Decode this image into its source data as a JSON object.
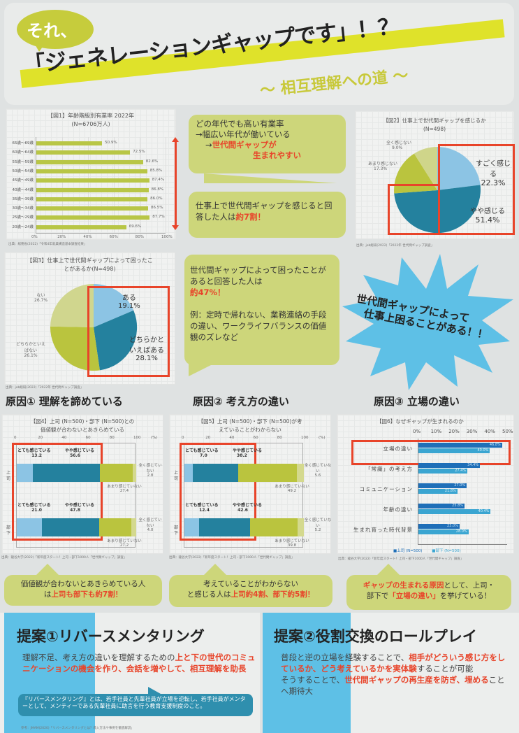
{
  "header": {
    "badge": "それ、",
    "title": "「ジェネレーションギャップです」！？",
    "subtitle": "～ 相互理解への道 ～"
  },
  "fig1": {
    "title_line1": "【図1】年齢階級別有業率 2022年",
    "title_line2": "(N=6706万人)",
    "source": "出典：総務省(2022)「令和4年就業構造基本調査結果」"
  },
  "callout1": {
    "line1": "どの年代でも高い有業率",
    "line2": "→幅広い年代が働いている",
    "line3_prefix": "→",
    "line3_red": "世代間ギャップが",
    "line4_red": "生まれやすい"
  },
  "callout2": {
    "text": "仕事上で世代間ギャップを感じると回答した人は",
    "red": "約7割！"
  },
  "fig2": {
    "title_line1": "【図2】仕事上で世代間ギャップを感じるか",
    "title_line2": "(N=498)",
    "labels": [
      {
        "name": "すごく感じる",
        "value": "22.3%"
      },
      {
        "name": "やや感じる",
        "value": "51.4%"
      },
      {
        "name": "あまり感じない",
        "value": "17.3%"
      },
      {
        "name": "全く感じない",
        "value": "9.0%"
      }
    ],
    "source": "出典：job総研(2022)「2022年 世代間ギャップ調査」"
  },
  "fig3": {
    "title_line1": "【図3】仕事上で世代間ギャップによって困ったこ",
    "title_line2": "とがあるか(N=498)",
    "labels": [
      {
        "name": "ある",
        "value": "19.1%"
      },
      {
        "name": "どちらかといえばある",
        "name1": "どちらかと",
        "name2": "いえばある",
        "value": "28.1%"
      },
      {
        "name": "どちらかといえばない",
        "name1": "どちらかといえ",
        "name2": "ばない",
        "value": "26.1%"
      },
      {
        "name": "ない",
        "value": "26.7%"
      }
    ],
    "source": "出典：job総研(2022)「2022年 世代間ギャップ調査」"
  },
  "callout3": {
    "line1": "世代間ギャップによって困ったことがあると回答した人は",
    "red": "約47%！",
    "example": "例：定時で帰れない、業務連絡の手段の違い、ワークライフバランスの価値観のズレなど"
  },
  "burst": {
    "line1": "世代間ギャップによって",
    "line2": "仕事上困ることがある！！"
  },
  "causes": [
    {
      "heading": "原因① 理解を諦めている"
    },
    {
      "heading": "原因② 考え方の違い"
    },
    {
      "heading": "原因③ 立場の違い"
    }
  ],
  "fig4": {
    "title_line1": "【図4】上司 (N=500)・部下 (N=500)との",
    "title_line2": "価値観が合わないとあきらめている",
    "axis": [
      "0",
      "20",
      "40",
      "60",
      "80",
      "100",
      "(%)"
    ],
    "rows": [
      {
        "label": "上司",
        "l1": "とても感じている",
        "v1": "13.2",
        "l2": "やや感じている",
        "v2": "56.6",
        "l3": "あまり感じていない",
        "v3": "27.4",
        "l4a": "全く感じてい",
        "l4b": "ない",
        "v4": "2.8"
      },
      {
        "label": "部下",
        "l1": "とても感じている",
        "v1": "21.0",
        "l2": "やや感じている",
        "v2": "47.8",
        "l3": "あまり感じていない",
        "v3": "27.2",
        "l4a": "全く感じてい",
        "l4b": "ない",
        "v4": "4.0"
      }
    ],
    "source": "出典：龍谷大学(2022)「新年度スタート！上司・部下1000人「世代間ギャップ」調査」"
  },
  "fig5": {
    "title_line1": "【図5】上司 (N=500)・部下 (N=500)が考",
    "title_line2": "えていることがわからない",
    "axis": [
      "0",
      "20",
      "40",
      "60",
      "80",
      "100",
      "(%)"
    ],
    "rows": [
      {
        "label": "上司",
        "l1": "とても感じている",
        "v1": "7.0",
        "l2": "やや感じている",
        "v2": "38.2",
        "l3": "あまり感じていない",
        "v3": "49.2",
        "l4a": "全く感じていな",
        "l4b": "い",
        "v4": "5.6"
      },
      {
        "label": "部下",
        "l1": "とても感じている",
        "v1": "12.4",
        "l2": "やや感じている",
        "v2": "42.6",
        "l3": "あまり感じていない",
        "v3": "39.8",
        "l4a": "全く感じていな",
        "l4b": "い",
        "v4": "5.2"
      }
    ],
    "source": "出典：龍谷大学(2022)「新年度スタート！上司・部下1000人「世代間ギャップ」調査」"
  },
  "fig6": {
    "title": "【図6】なぜギャップが生まれるのか",
    "axis": [
      "0%",
      "10%",
      "20%",
      "30%",
      "40%",
      "50%"
    ],
    "rows": [
      {
        "label": "立場の違い",
        "boss": "46.8%",
        "sub": "40.0%"
      },
      {
        "label": "「常識」の考え方",
        "boss": "34.4%",
        "sub": "27.4%"
      },
      {
        "label": "コミュニケーション",
        "boss": "27.0%",
        "sub": "21.8%"
      },
      {
        "label": "年齢の違い",
        "boss": "25.8%",
        "sub": "40.4%"
      },
      {
        "label": "生まれ育った時代背景",
        "boss": "23.0%",
        "sub": "28.0%"
      }
    ],
    "legend_boss": "■上司 (N=500)",
    "legend_sub": "■部下 (N=500)",
    "source": "出典：龍谷大学(2022)「新年度スタート！上司・部下1000人「世代間ギャップ」調査」"
  },
  "summary": [
    {
      "line1": "価値観が合わないとあきらめている人",
      "line2_prefix": "は",
      "line2_red": "上司も部下も約7割！"
    },
    {
      "line1": "考えていることがわからない",
      "line2_prefix": "と感じる人は",
      "line2_red": "上司約4割、部下約5割！"
    },
    {
      "line1_red": "ギャップの生まれる原因",
      "line1": "として、上司・",
      "line2_prefix": "部下で",
      "line2_red": "「立場の違い」",
      "line2_suffix": "を挙げている！"
    }
  ],
  "proposal1": {
    "title": "提案①リバースメンタリング",
    "text_plain": "理解不足、考え方の違いを理解するための",
    "text_red": "上と下の世代のコミュニケーションの機会を作り、会話を増やして、相互理解を助長",
    "note": "『リバースメンタリング』とは、若手社員と先輩社員が立場を逆転し、若手社員がメンターとして、メンティーである先輩社員に助言を行う教育支援制度のこと。",
    "source": "参考：JMAM(2020)「リバースメンタリングとは？導入方法や事例を徹底解説」"
  },
  "proposal2": {
    "title": "提案②役割交換のロールプレイ",
    "t1": "普段と逆の立場を経験することで、",
    "t2_red": "相手がどういう感じ方をしているか、どう考えているかを実体験",
    "t3": "することが可能",
    "t4": "そうすることで、",
    "t5_red": "世代間ギャップの再生産を防ぎ、埋める",
    "t6": "ことへ期待大"
  },
  "chart_data": [
    {
      "type": "bar",
      "title": "【図1】年齢階級別有業率 2022年 (N=6706万人)",
      "orientation": "horizontal",
      "categories": [
        "65歳～69歳",
        "60歳～64歳",
        "55歳～59歳",
        "50歳～54歳",
        "45歳～49歳",
        "40歳～44歳",
        "35歳～39歳",
        "30歳～34歳",
        "25歳～29歳",
        "20歳～24歳"
      ],
      "values": [
        50.9,
        72.5,
        82.6,
        85.8,
        87.4,
        86.8,
        86.0,
        86.5,
        87.7,
        69.6
      ],
      "value_labels": [
        "50.9%",
        "72.5%",
        "82.6%",
        "85.8%",
        "87.4%",
        "86.8%",
        "86.0%",
        "86.5%",
        "87.7%",
        "69.6%"
      ],
      "xlim": [
        0,
        100
      ],
      "xticks": [
        "0%",
        "20%",
        "40%",
        "60%",
        "80%",
        "100%"
      ],
      "grid": true
    },
    {
      "type": "pie",
      "title": "【図2】仕事上で世代間ギャップを感じるか (N=498)",
      "categories": [
        "すごく感じる",
        "やや感じる",
        "あまり感じない",
        "全く感じない"
      ],
      "values": [
        22.3,
        51.4,
        17.3,
        9.0
      ]
    },
    {
      "type": "pie",
      "title": "【図3】仕事上で世代間ギャップによって困ったことがあるか (N=498)",
      "categories": [
        "ある",
        "どちらかといえばある",
        "どちらかといえばない",
        "ない"
      ],
      "values": [
        19.1,
        28.1,
        26.1,
        26.7
      ]
    },
    {
      "type": "bar",
      "stacked": true,
      "orientation": "horizontal",
      "title": "【図4】上司 (N=500)・部下 (N=500)との価値観が合わないとあきらめている",
      "categories": [
        "上司",
        "部下"
      ],
      "series": [
        {
          "name": "とても感じている",
          "values": [
            13.2,
            21.0
          ]
        },
        {
          "name": "やや感じている",
          "values": [
            56.6,
            47.8
          ]
        },
        {
          "name": "あまり感じていない",
          "values": [
            27.4,
            27.2
          ]
        },
        {
          "name": "全く感じていない",
          "values": [
            2.8,
            4.0
          ]
        }
      ],
      "xlim": [
        0,
        100
      ],
      "xlabel": "(%)"
    },
    {
      "type": "bar",
      "stacked": true,
      "orientation": "horizontal",
      "title": "【図5】上司 (N=500)・部下 (N=500)が考えていることがわからない",
      "categories": [
        "上司",
        "部下"
      ],
      "series": [
        {
          "name": "とても感じている",
          "values": [
            7.0,
            12.4
          ]
        },
        {
          "name": "やや感じている",
          "values": [
            38.2,
            42.6
          ]
        },
        {
          "name": "あまり感じていない",
          "values": [
            49.2,
            39.8
          ]
        },
        {
          "name": "全く感じていない",
          "values": [
            5.6,
            5.2
          ]
        }
      ],
      "xlim": [
        0,
        100
      ],
      "xlabel": "(%)"
    },
    {
      "type": "bar",
      "orientation": "horizontal",
      "title": "【図6】なぜギャップが生まれるのか",
      "categories": [
        "立場の違い",
        "「常識」の考え方",
        "コミュニケーション",
        "年齢の違い",
        "生まれ育った時代背景"
      ],
      "series": [
        {
          "name": "上司 (N=500)",
          "values": [
            46.8,
            34.4,
            27.0,
            25.8,
            23.0
          ]
        },
        {
          "name": "部下 (N=500)",
          "values": [
            40.0,
            27.4,
            21.8,
            40.4,
            28.0
          ]
        }
      ],
      "xlim": [
        0,
        50
      ],
      "xticks": [
        "0%",
        "10%",
        "20%",
        "30%",
        "40%",
        "50%"
      ],
      "legend_position": "bottom"
    }
  ]
}
